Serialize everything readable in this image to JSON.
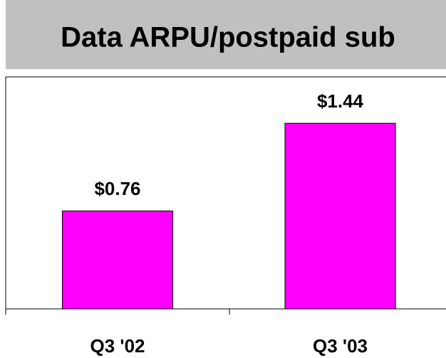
{
  "chart_data": {
    "type": "bar",
    "title": "Data ARPU/postpaid sub",
    "categories": [
      "Q3 '02",
      "Q3 '03"
    ],
    "values": [
      0.76,
      1.44
    ],
    "value_labels": [
      "$0.76",
      "$1.44"
    ],
    "color": "#ff00ff",
    "ylim": [
      0,
      1.8
    ]
  }
}
